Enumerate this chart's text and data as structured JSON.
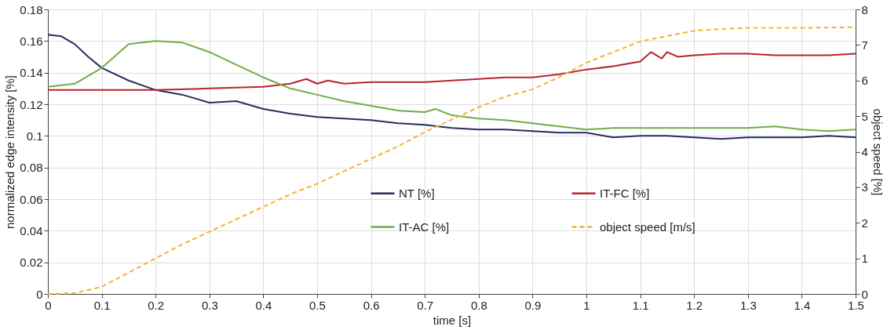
{
  "chart_data": {
    "type": "line",
    "xlabel": "time [s]",
    "ylabel": "normalized edge intensity [%]",
    "y2label": "object speed [%]",
    "xlim": [
      0,
      1.5
    ],
    "xticks": [
      0,
      0.1,
      0.2,
      0.3,
      0.4,
      0.5,
      0.6,
      0.7,
      0.8,
      0.9,
      1,
      1.1,
      1.2,
      1.3,
      1.4,
      1.5
    ],
    "ylim": [
      0,
      0.18
    ],
    "yticks": [
      0,
      0.02,
      0.04,
      0.06,
      0.08,
      0.1,
      0.12,
      0.14,
      0.16,
      0.18
    ],
    "y2lim": [
      0,
      8
    ],
    "y2ticks": [
      0,
      1,
      2,
      3,
      4,
      5,
      6,
      7,
      8
    ],
    "grid": true,
    "legend": "bottom right",
    "marker": "none",
    "line_style": "solid",
    "series": [
      {
        "name": "NT [%]",
        "color": "#262e5e",
        "x": [
          0,
          0.025,
          0.05,
          0.075,
          0.1,
          0.15,
          0.2,
          0.25,
          0.3,
          0.35,
          0.4,
          0.45,
          0.5,
          0.55,
          0.6,
          0.65,
          0.7,
          0.75,
          0.8,
          0.85,
          0.9,
          0.95,
          1.0,
          1.05,
          1.1,
          1.15,
          1.2,
          1.25,
          1.3,
          1.35,
          1.4,
          1.45,
          1.5
        ],
        "values": [
          0.164,
          0.163,
          0.158,
          0.15,
          0.143,
          0.135,
          0.129,
          0.126,
          0.121,
          0.122,
          0.117,
          0.114,
          0.112,
          0.111,
          0.11,
          0.108,
          0.107,
          0.105,
          0.104,
          0.104,
          0.103,
          0.102,
          0.102,
          0.099,
          0.1,
          0.1,
          0.099,
          0.098,
          0.099,
          0.099,
          0.099,
          0.1,
          0.099
        ]
      },
      {
        "name": "IT-FC [%]",
        "color": "#b8232f",
        "x": [
          0,
          0.1,
          0.2,
          0.3,
          0.4,
          0.45,
          0.48,
          0.5,
          0.52,
          0.55,
          0.6,
          0.7,
          0.8,
          0.85,
          0.9,
          0.95,
          1.0,
          1.05,
          1.1,
          1.12,
          1.14,
          1.15,
          1.17,
          1.2,
          1.25,
          1.3,
          1.35,
          1.4,
          1.45,
          1.5
        ],
        "values": [
          0.129,
          0.129,
          0.129,
          0.13,
          0.131,
          0.133,
          0.136,
          0.133,
          0.135,
          0.133,
          0.134,
          0.134,
          0.136,
          0.137,
          0.137,
          0.139,
          0.142,
          0.144,
          0.147,
          0.153,
          0.149,
          0.153,
          0.15,
          0.151,
          0.152,
          0.152,
          0.151,
          0.151,
          0.151,
          0.152
        ]
      },
      {
        "name": "IT-AC [%]",
        "color": "#70ad47",
        "x": [
          0,
          0.05,
          0.1,
          0.15,
          0.2,
          0.25,
          0.3,
          0.35,
          0.4,
          0.45,
          0.5,
          0.55,
          0.6,
          0.65,
          0.7,
          0.72,
          0.75,
          0.8,
          0.85,
          0.9,
          0.95,
          1.0,
          1.05,
          1.1,
          1.15,
          1.2,
          1.25,
          1.3,
          1.35,
          1.4,
          1.45,
          1.5
        ],
        "values": [
          0.131,
          0.133,
          0.143,
          0.158,
          0.16,
          0.159,
          0.153,
          0.145,
          0.137,
          0.13,
          0.126,
          0.122,
          0.119,
          0.116,
          0.115,
          0.117,
          0.113,
          0.111,
          0.11,
          0.108,
          0.106,
          0.104,
          0.105,
          0.105,
          0.105,
          0.105,
          0.105,
          0.105,
          0.106,
          0.104,
          0.103,
          0.104
        ]
      },
      {
        "name": "object speed [m/s]",
        "color": "#f5b335",
        "axis": "y2",
        "line_style": "dashed",
        "x": [
          0,
          0.05,
          0.1,
          0.15,
          0.2,
          0.25,
          0.3,
          0.35,
          0.4,
          0.45,
          0.5,
          0.55,
          0.6,
          0.65,
          0.7,
          0.75,
          0.8,
          0.85,
          0.9,
          0.95,
          1.0,
          1.05,
          1.1,
          1.15,
          1.2,
          1.25,
          1.3,
          1.4,
          1.5
        ],
        "values": [
          0,
          0.02,
          0.2,
          0.6,
          1.0,
          1.4,
          1.75,
          2.1,
          2.45,
          2.8,
          3.1,
          3.45,
          3.8,
          4.15,
          4.55,
          4.9,
          5.25,
          5.55,
          5.75,
          6.1,
          6.5,
          6.8,
          7.1,
          7.25,
          7.4,
          7.45,
          7.48,
          7.48,
          7.5
        ]
      }
    ]
  }
}
